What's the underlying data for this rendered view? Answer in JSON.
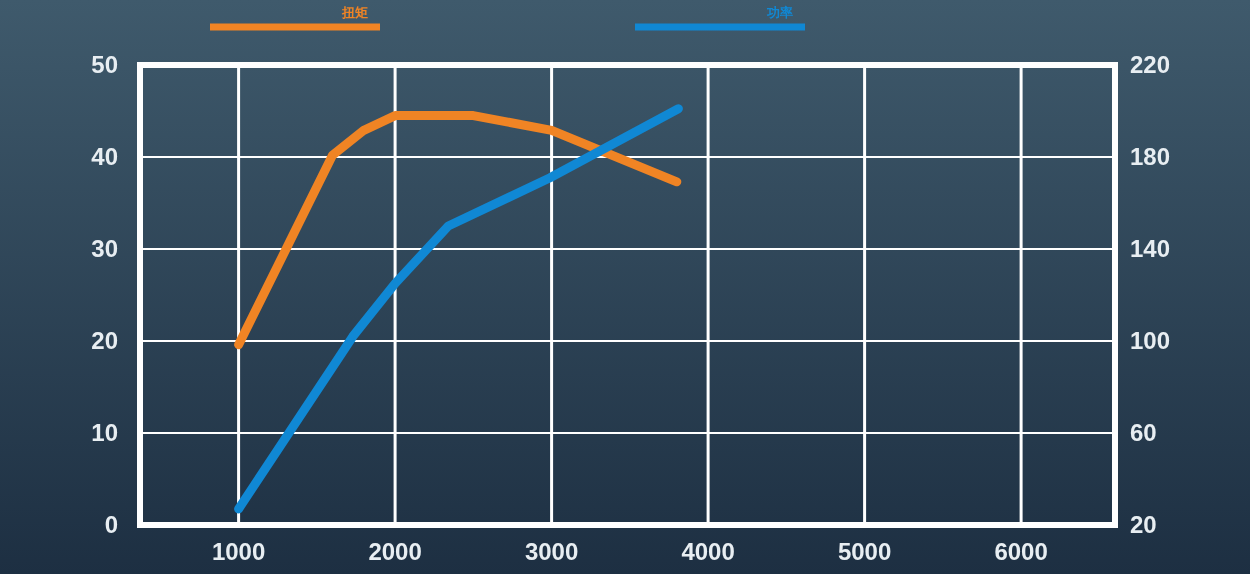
{
  "chart_data": {
    "type": "line",
    "x": [
      1000,
      1350,
      1600,
      1800,
      2000,
      2500,
      3000,
      3800
    ],
    "series": [
      {
        "name": "扭矩",
        "color": "#f08424",
        "axis": "y",
        "values": [
          19.6,
          31.6,
          40.2,
          42.9,
          44.5,
          44.5,
          42.9,
          37.3
        ]
      },
      {
        "name": "功率",
        "color": "#1088d4",
        "axis": "y2",
        "x": [
          1000,
          1730,
          2000,
          2340,
          2990,
          3810
        ],
        "values": [
          27,
          102,
          125,
          150,
          171,
          201
        ]
      }
    ],
    "xlim": [
      370,
      6600
    ],
    "xticks": [
      1000,
      2000,
      3000,
      4000,
      5000,
      6000
    ],
    "ylim": [
      0,
      50
    ],
    "yticks": [
      0,
      10,
      20,
      30,
      40,
      50
    ],
    "y2lim": [
      20,
      220
    ],
    "y2ticks": [
      20,
      60,
      100,
      140,
      180,
      220
    ],
    "grid": true,
    "legend": "top"
  }
}
